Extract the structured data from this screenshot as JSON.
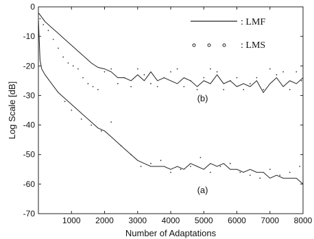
{
  "chart_data": {
    "type": "line",
    "title": "",
    "xlabel": "Number  of  Adaptations",
    "ylabel": "Log  Scale  [dB]",
    "xlim": [
      0,
      8000
    ],
    "ylim": [
      -70,
      0
    ],
    "xticks": [
      1000,
      2000,
      3000,
      4000,
      5000,
      6000,
      7000,
      8000
    ],
    "yticks": [
      0,
      -10,
      -20,
      -30,
      -40,
      -50,
      -60,
      -70
    ],
    "grid": false,
    "legend_position": "top-right",
    "legend": [
      {
        "label": ":  LMF",
        "marker": "line"
      },
      {
        "label": ":  LMS",
        "marker": "dots"
      }
    ],
    "annotations": [
      {
        "text": "(b)",
        "x": 4800,
        "y": -32
      },
      {
        "text": "(a)",
        "x": 4800,
        "y": -63
      }
    ],
    "series": [
      {
        "name": "LMF (b)",
        "style": "line",
        "x": [
          0,
          200,
          400,
          600,
          800,
          1000,
          1200,
          1400,
          1600,
          1800,
          2000,
          2200,
          2400,
          2600,
          2800,
          3000,
          3200,
          3400,
          3600,
          3800,
          4000,
          4200,
          4400,
          4600,
          4800,
          5000,
          5200,
          5400,
          5600,
          5800,
          6000,
          6200,
          6400,
          6600,
          6800,
          7000,
          7200,
          7400,
          7600,
          7800,
          8000
        ],
        "y": [
          -2,
          -5,
          -7,
          -9,
          -11,
          -13,
          -15,
          -17,
          -19,
          -20.5,
          -21,
          -22,
          -24,
          -24,
          -25,
          -23,
          -25,
          -22,
          -25,
          -24,
          -25,
          -26,
          -24,
          -25,
          -27,
          -25,
          -26,
          -23,
          -26,
          -25,
          -27,
          -26,
          -27,
          -25,
          -29,
          -26,
          -24,
          -27,
          -25,
          -26,
          -24
        ]
      },
      {
        "name": "LMF (a)",
        "style": "line",
        "x": [
          0,
          50,
          100,
          200,
          400,
          600,
          800,
          1000,
          1200,
          1400,
          1600,
          1800,
          2000,
          2200,
          2400,
          2600,
          2800,
          3000,
          3200,
          3400,
          3600,
          3800,
          4000,
          4200,
          4400,
          4600,
          4800,
          5000,
          5200,
          5400,
          5600,
          5800,
          6000,
          6200,
          6400,
          6600,
          6800,
          7000,
          7200,
          7400,
          7600,
          7800,
          8000
        ],
        "y": [
          -4,
          -18,
          -21,
          -23,
          -26,
          -29,
          -31,
          -33,
          -35,
          -37,
          -39,
          -41,
          -42,
          -44,
          -46,
          -48,
          -50,
          -52,
          -53,
          -54,
          -54,
          -54,
          -55,
          -54,
          -55,
          -53,
          -54,
          -55,
          -53,
          -54,
          -53,
          -55,
          -55,
          -56,
          -55,
          -56,
          -56,
          -58,
          -57,
          -58,
          -58,
          -58,
          -60
        ]
      },
      {
        "name": "LMS (b)",
        "style": "dots",
        "x": [
          50,
          150,
          300,
          450,
          600,
          750,
          900,
          1050,
          1200,
          1350,
          1500,
          1650,
          1800,
          2000,
          2200,
          2400,
          2600,
          2800,
          3000,
          3200,
          3400,
          3600,
          3800,
          4000,
          4200,
          4400,
          4600,
          4800,
          5000,
          5200,
          5400,
          5600,
          5800,
          6000,
          6200,
          6400,
          6600,
          6800,
          7000,
          7200,
          7400,
          7600,
          7800,
          7950
        ],
        "y": [
          -4,
          -6,
          -8,
          -11,
          -14,
          -17,
          -19,
          -20,
          -21,
          -24,
          -26,
          -27,
          -28,
          -22,
          -21,
          -26,
          -24,
          -27,
          -21,
          -23,
          -26,
          -27,
          -24,
          -22,
          -21,
          -27,
          -25,
          -28,
          -24,
          -21,
          -22,
          -28,
          -25,
          -24,
          -28,
          -26,
          -24,
          -28,
          -21,
          -23,
          -22,
          -28,
          -22,
          -25
        ]
      },
      {
        "name": "LMS (a)",
        "style": "dots",
        "x": [
          800,
          1000,
          1300,
          1600,
          1900,
          2200,
          2500,
          2800,
          3100,
          3400,
          3700,
          4000,
          4300,
          4600,
          4900,
          5200,
          5500,
          5800,
          6100,
          6400,
          6700,
          7000,
          7300,
          7600,
          7900
        ],
        "y": [
          -32,
          -35,
          -38,
          -40,
          -42,
          -39,
          -47,
          -50,
          -54,
          -53,
          -52,
          -56,
          -55,
          -54,
          -51,
          -56,
          -54,
          -53,
          -56,
          -57,
          -58,
          -55,
          -57,
          -56,
          -54
        ]
      }
    ]
  }
}
